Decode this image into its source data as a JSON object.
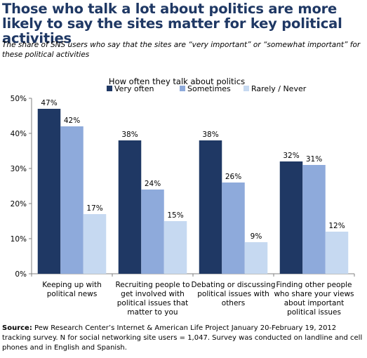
{
  "title": "Those who talk a lot about politics are more likely to say the sites matter for key political activities",
  "subtitle": "The share of SNS users who say that the sites are “very important” or “somewhat important” for these political activities",
  "source": {
    "label": "Source:",
    "text": "Pew Research Center’s Internet & American Life Project January 20-February 19, 2012 tracking survey. N for social networking site users = 1,047. Survey was conducted on landline and cell phones and in English and Spanish."
  },
  "chart_data": {
    "type": "bar",
    "title": "How often they talk about politics",
    "categories": [
      [
        "Keeping up with",
        "political news"
      ],
      [
        "Recruiting people to",
        "get involved with",
        "political issues that",
        "matter to you"
      ],
      [
        "Debating or discussing",
        "political issues with",
        "others"
      ],
      [
        "Finding other people",
        "who share your views",
        "about important",
        "political issues"
      ]
    ],
    "series": [
      {
        "name": "Very often",
        "values": [
          47,
          38,
          38,
          32
        ],
        "color": "#1f3864"
      },
      {
        "name": "Sometimes",
        "values": [
          42,
          24,
          26,
          31
        ],
        "color": "#8eaadb"
      },
      {
        "name": "Rarely / Never",
        "values": [
          17,
          15,
          9,
          12
        ],
        "color": "#c6d9f1"
      }
    ],
    "value_suffix": "%",
    "ylim": [
      0,
      50
    ],
    "yticks": [
      "0%",
      "10%",
      "20%",
      "30%",
      "40%",
      "50%"
    ],
    "grid": false,
    "legend": "top-center"
  }
}
